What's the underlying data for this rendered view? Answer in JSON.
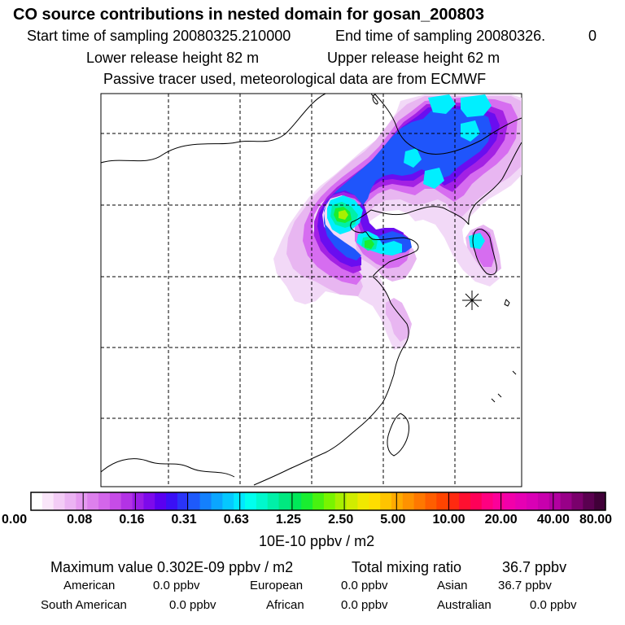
{
  "header": {
    "title": "CO  source contributions in nested domain for gosan_200803",
    "start_label": "Start time of sampling 20080325.210000",
    "end_label": "End time of sampling 20080326.",
    "end_value": "0",
    "lower_release": "Lower release height   82 m",
    "upper_release": "Upper release height   62 m",
    "tracer_info": "Passive tracer used, meteorological data are from ECMWF"
  },
  "colorbar": {
    "ticks": [
      "0.00",
      "0.08",
      "0.16",
      "0.31",
      "0.63",
      "1.25",
      "2.50",
      "5.00",
      "10.00",
      "20.00",
      "40.00",
      "80.00"
    ],
    "unit": "10E-10 ppbv / m2",
    "colors": [
      "#ffffff",
      "#fae6fa",
      "#f3ccf6",
      "#ebb3f3",
      "#e599f0",
      "#dd80ec",
      "#d366ea",
      "#c64ce7",
      "#b333e5",
      "#9a1ce6",
      "#7d0aeb",
      "#5a00f0",
      "#3a10f5",
      "#2a34f8",
      "#1e5afb",
      "#1480fd",
      "#0ba6ff",
      "#05c8ff",
      "#00e8ff",
      "#00ffee",
      "#00f8cc",
      "#00f0a8",
      "#00e880",
      "#00e858",
      "#19ee30",
      "#48f210",
      "#78f400",
      "#a8f000",
      "#d0ec00",
      "#f0e800",
      "#ffdd00",
      "#ffc400",
      "#ffab00",
      "#ff9200",
      "#ff7800",
      "#ff5e00",
      "#ff4400",
      "#ff2a10",
      "#ff1030",
      "#ff0058",
      "#ff0080",
      "#fb0099",
      "#f200aa",
      "#e600b3",
      "#d900b5",
      "#c800ad",
      "#b200a0",
      "#980088",
      "#7a006c",
      "#5a0050",
      "#400038"
    ]
  },
  "stats": {
    "max_label": "Maximum value  0.302E-09 ppbv / m2",
    "total_label": "Total mixing ratio",
    "total_value": "36.7 ppbv"
  },
  "contributions": [
    {
      "name": "American",
      "value": "0.0 ppbv"
    },
    {
      "name": "European",
      "value": "0.0 ppbv"
    },
    {
      "name": "Asian",
      "value": "36.7 ppbv"
    },
    {
      "name": "South American",
      "value": "0.0 ppbv"
    },
    {
      "name": "African",
      "value": "0.0 ppbv"
    },
    {
      "name": "Australian",
      "value": "0.0 ppbv"
    }
  ],
  "plume": {
    "colors": {
      "light_pink": "#f2d9f7",
      "pink": "#e8b6f1",
      "magenta": "#d66df0",
      "purple": "#a321e4",
      "violet": "#6a0df0",
      "blue": "#1f55fb",
      "cyan": "#00efff",
      "teal": "#00f0a8",
      "green": "#19ee30",
      "yellow_green": "#a8f000"
    }
  }
}
